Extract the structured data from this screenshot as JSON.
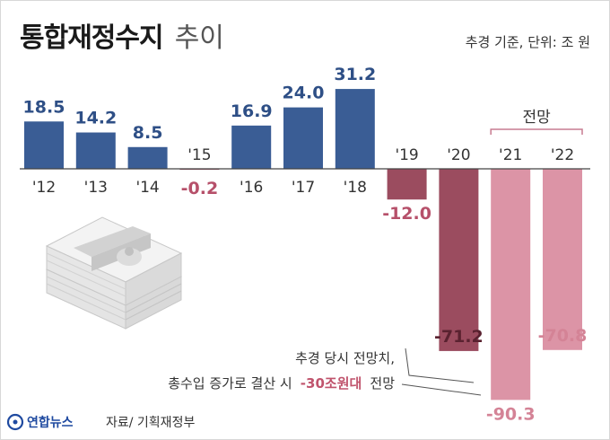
{
  "title": {
    "main": "통합재정수지",
    "sub": "추이"
  },
  "unit_note": "추경 기준, 단위: 조 원",
  "forecast_label": "전망",
  "annotation": {
    "line1": "추경 당시 전망치,",
    "line2_prefix": "총수입 증가로 결산 시",
    "line2_highlight": "-30조원대",
    "line2_suffix": "전망"
  },
  "source": "자료/ 기획재정부",
  "logo_text": "연합뉴스",
  "colors": {
    "positive": "#3a5d95",
    "negative_actual": "#9b4c5f",
    "forecast": "#dc94a6",
    "negative_text": "#b6506a",
    "forecast_text": "#d48396",
    "positive_text": "#2e4f86"
  },
  "chart_data": {
    "type": "bar",
    "categories": [
      "'12",
      "'13",
      "'14",
      "'15",
      "'16",
      "'17",
      "'18",
      "'19",
      "'20",
      "'21",
      "'22"
    ],
    "values": [
      18.5,
      14.2,
      8.5,
      -0.2,
      16.9,
      24.0,
      31.2,
      -12.0,
      -71.2,
      -90.3,
      -70.8
    ],
    "value_labels": [
      "18.5",
      "14.2",
      "8.5",
      "-0.2",
      "16.9",
      "24.0",
      "31.2",
      "-12.0",
      "-71.2",
      "-90.3",
      "-70.8"
    ],
    "forecast": [
      false,
      false,
      false,
      false,
      false,
      false,
      false,
      false,
      false,
      true,
      true
    ],
    "title": "통합재정수지 추이",
    "ylabel": "",
    "xlabel": "",
    "grid": false,
    "legend": "none"
  }
}
